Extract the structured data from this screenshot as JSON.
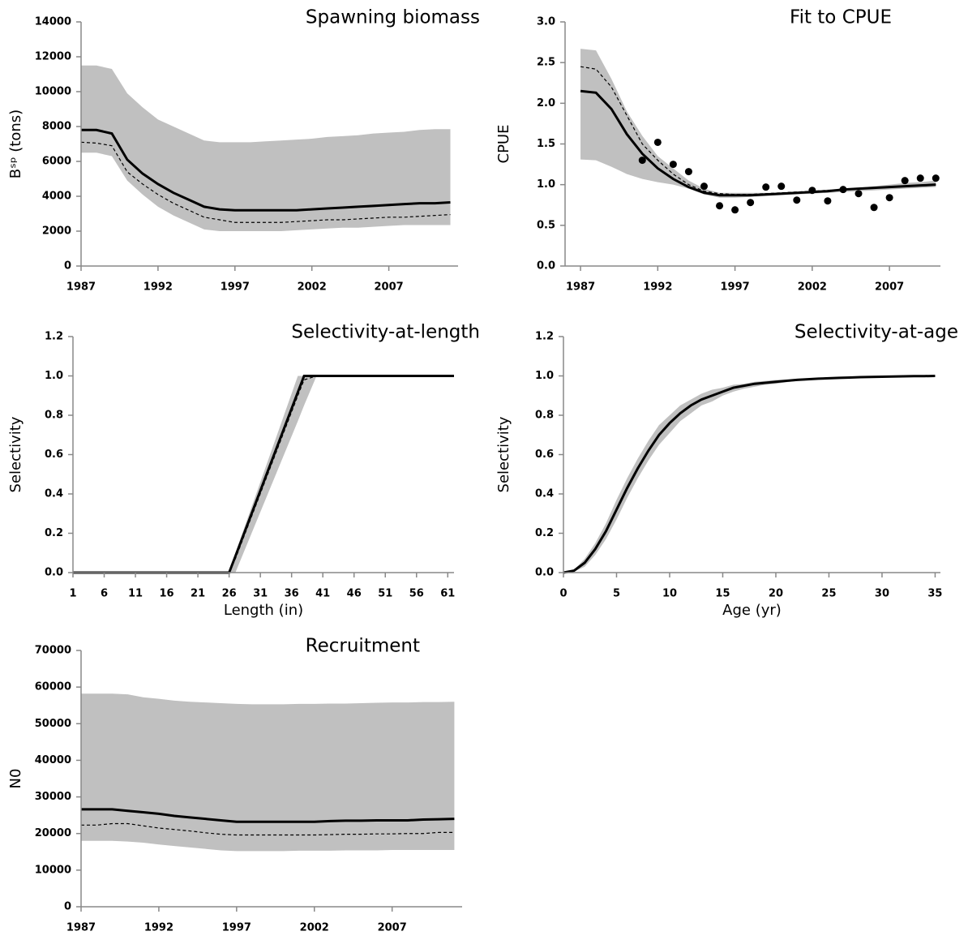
{
  "chart_data": [
    {
      "type": "band-line",
      "title": "Spawning biomass",
      "ylabel": "Bˢᵖ (tons)",
      "x": [
        1987,
        1988,
        1989,
        1990,
        1991,
        1992,
        1993,
        1994,
        1995,
        1996,
        1997,
        1998,
        1999,
        2000,
        2001,
        2002,
        2003,
        2004,
        2005,
        2006,
        2007,
        2008,
        2009,
        2010,
        2011
      ],
      "band": {
        "color": "#c0c0c0",
        "upper": [
          11500,
          11500,
          11300,
          9900,
          9100,
          8400,
          8000,
          7600,
          7200,
          7100,
          7100,
          7100,
          7150,
          7200,
          7250,
          7300,
          7400,
          7450,
          7500,
          7600,
          7650,
          7700,
          7800,
          7850,
          7850
        ],
        "lower": [
          6500,
          6500,
          6300,
          4900,
          4100,
          3400,
          2900,
          2500,
          2100,
          2000,
          2000,
          2000,
          2000,
          2000,
          2050,
          2100,
          2150,
          2200,
          2200,
          2250,
          2300,
          2350,
          2350,
          2350,
          2350
        ]
      },
      "series": [
        {
          "color": "#000000",
          "style": "solid",
          "values": [
            7800,
            7800,
            7600,
            6100,
            5300,
            4700,
            4200,
            3800,
            3400,
            3250,
            3200,
            3200,
            3200,
            3200,
            3200,
            3250,
            3300,
            3350,
            3400,
            3450,
            3500,
            3550,
            3600,
            3600,
            3650
          ]
        },
        {
          "color": "#000000",
          "style": "dashed",
          "values": [
            7100,
            7050,
            6900,
            5400,
            4700,
            4100,
            3600,
            3200,
            2800,
            2650,
            2500,
            2500,
            2500,
            2500,
            2550,
            2600,
            2650,
            2650,
            2700,
            2750,
            2800,
            2800,
            2850,
            2900,
            2950
          ]
        }
      ],
      "xlim": [
        1987,
        2011.5
      ],
      "xticks": [
        1987,
        1992,
        1997,
        2002,
        2007
      ],
      "ylim": [
        0,
        14000
      ],
      "yticks": [
        0,
        2000,
        4000,
        6000,
        8000,
        10000,
        12000,
        14000
      ]
    },
    {
      "type": "band-line",
      "title": "Fit to CPUE",
      "ylabel": "CPUE",
      "x": [
        1987,
        1988,
        1989,
        1990,
        1991,
        1992,
        1993,
        1994,
        1995,
        1996,
        1997,
        1998,
        1999,
        2000,
        2001,
        2002,
        2003,
        2004,
        2005,
        2006,
        2007,
        2008,
        2009,
        2010
      ],
      "band": {
        "color": "#c0c0c0",
        "upper": [
          2.67,
          2.65,
          2.3,
          1.9,
          1.6,
          1.35,
          1.2,
          1.05,
          0.95,
          0.9,
          0.9,
          0.9,
          0.9,
          0.9,
          0.91,
          0.92,
          0.94,
          0.95,
          0.96,
          0.98,
          1.0,
          1.02,
          1.03,
          1.05
        ],
        "lower": [
          1.31,
          1.3,
          1.22,
          1.13,
          1.07,
          1.03,
          1.0,
          0.95,
          0.88,
          0.84,
          0.84,
          0.85,
          0.86,
          0.87,
          0.88,
          0.89,
          0.9,
          0.91,
          0.92,
          0.93,
          0.94,
          0.95,
          0.96,
          0.97
        ]
      },
      "series": [
        {
          "color": "#000000",
          "style": "solid",
          "values": [
            2.15,
            2.13,
            1.93,
            1.62,
            1.38,
            1.2,
            1.07,
            0.97,
            0.9,
            0.87,
            0.87,
            0.87,
            0.88,
            0.89,
            0.9,
            0.91,
            0.92,
            0.94,
            0.95,
            0.96,
            0.97,
            0.98,
            0.99,
            1.0
          ]
        },
        {
          "color": "#000000",
          "style": "dashed",
          "values": [
            2.45,
            2.42,
            2.2,
            1.85,
            1.5,
            1.3,
            1.13,
            1.0,
            0.92,
            0.89,
            0.88,
            0.88,
            0.89,
            0.9,
            0.91,
            0.92,
            0.93,
            0.94,
            0.95,
            0.96,
            0.97,
            0.98,
            0.99,
            1.0
          ]
        }
      ],
      "points": {
        "color": "#000000",
        "x": [
          1991,
          1992,
          1993,
          1994,
          1995,
          1996,
          1997,
          1998,
          1999,
          2000,
          2001,
          2002,
          2003,
          2004,
          2005,
          2006,
          2007,
          2008,
          2009,
          2010
        ],
        "values": [
          1.3,
          1.52,
          1.25,
          1.16,
          0.98,
          0.74,
          0.69,
          0.78,
          0.97,
          0.98,
          0.81,
          0.93,
          0.8,
          0.94,
          0.89,
          0.72,
          0.84,
          1.05,
          1.08,
          1.08
        ]
      },
      "xlim": [
        1986,
        2010.3
      ],
      "xticks": [
        1987,
        1992,
        1997,
        2002,
        2007
      ],
      "ylim": [
        0,
        3
      ],
      "yticks": [
        {
          "value": 0,
          "label": "0.0"
        },
        0.5,
        {
          "value": 1,
          "label": "1.0"
        },
        1.5,
        {
          "value": 2,
          "label": "2.0"
        },
        2.5,
        {
          "value": 3,
          "label": "3.0"
        }
      ]
    },
    {
      "type": "band-line",
      "title": "Selectivity-at-length",
      "ylabel": "Selectivity",
      "xlabel": "Length (in)",
      "x": [
        1,
        26,
        27,
        37,
        38,
        40,
        62
      ],
      "band": {
        "color": "#c0c0c0",
        "upper": [
          0,
          0,
          0.1,
          1,
          1,
          1,
          1
        ],
        "lower": [
          0,
          0,
          0,
          0.77,
          0.85,
          1,
          1
        ]
      },
      "series": [
        {
          "color": "#000000",
          "style": "solid",
          "values": [
            0,
            0,
            0.083,
            0.917,
            1,
            1,
            1
          ]
        },
        {
          "color": "#000000",
          "style": "dashed",
          "values": [
            0,
            0,
            0.07,
            0.9,
            0.98,
            1,
            1
          ]
        }
      ],
      "xlim": [
        1,
        62
      ],
      "xticks": [
        1,
        6,
        11,
        16,
        21,
        26,
        31,
        36,
        41,
        46,
        51,
        56,
        61
      ],
      "ylim": [
        0,
        1.2
      ],
      "yticks": [
        {
          "value": 0,
          "label": "0.0"
        },
        0.2,
        0.4,
        0.6,
        0.8,
        {
          "value": 1,
          "label": "1.0"
        },
        1.2
      ]
    },
    {
      "type": "band-line",
      "title": "Selectivity-at-age",
      "ylabel": "Selectivity",
      "xlabel": "Age (yr)",
      "x": [
        0,
        1,
        2,
        3,
        4,
        5,
        6,
        7,
        8,
        9,
        10,
        11,
        12,
        13,
        14,
        15,
        16,
        17,
        18,
        19,
        20,
        21,
        22,
        23,
        24,
        25,
        26,
        27,
        28,
        29,
        30,
        31,
        32,
        33,
        34,
        35
      ],
      "band": {
        "color": "#c0c0c0",
        "upper": [
          0,
          0.015,
          0.07,
          0.15,
          0.25,
          0.37,
          0.48,
          0.58,
          0.67,
          0.75,
          0.8,
          0.85,
          0.88,
          0.91,
          0.93,
          0.94,
          0.955,
          0.96,
          0.97,
          0.975,
          0.98,
          0.983,
          0.986,
          0.988,
          0.99,
          0.992,
          0.993,
          0.995,
          0.996,
          0.997,
          0.998,
          0.998,
          0.999,
          0.999,
          1,
          1
        ],
        "lower": [
          0,
          0.005,
          0.03,
          0.09,
          0.17,
          0.27,
          0.38,
          0.48,
          0.57,
          0.65,
          0.71,
          0.77,
          0.81,
          0.85,
          0.87,
          0.9,
          0.92,
          0.935,
          0.945,
          0.955,
          0.96,
          0.968,
          0.974,
          0.978,
          0.982,
          0.985,
          0.988,
          0.99,
          0.992,
          0.994,
          0.995,
          0.996,
          0.997,
          0.998,
          0.999,
          1
        ]
      },
      "series": [
        {
          "color": "#000000",
          "style": "solid",
          "values": [
            0,
            0.01,
            0.05,
            0.12,
            0.21,
            0.32,
            0.43,
            0.53,
            0.62,
            0.7,
            0.76,
            0.81,
            0.85,
            0.88,
            0.9,
            0.92,
            0.94,
            0.95,
            0.96,
            0.965,
            0.97,
            0.975,
            0.98,
            0.983,
            0.986,
            0.988,
            0.99,
            0.992,
            0.994,
            0.995,
            0.996,
            0.997,
            0.998,
            0.999,
            0.999,
            1
          ]
        }
      ],
      "xlim": [
        0,
        35.5
      ],
      "xticks": [
        0,
        5,
        10,
        15,
        20,
        25,
        30,
        35
      ],
      "ylim": [
        0,
        1.2
      ],
      "yticks": [
        {
          "value": 0,
          "label": "0.0"
        },
        0.2,
        0.4,
        0.6,
        0.8,
        {
          "value": 1,
          "label": "1.0"
        },
        1.2
      ]
    },
    {
      "type": "band-line",
      "title": "Recruitment",
      "ylabel": "N0",
      "x": [
        1987,
        1988,
        1989,
        1990,
        1991,
        1992,
        1993,
        1994,
        1995,
        1996,
        1997,
        1998,
        1999,
        2000,
        2001,
        2002,
        2003,
        2004,
        2005,
        2006,
        2007,
        2008,
        2009,
        2010,
        2011
      ],
      "band": {
        "color": "#c0c0c0",
        "upper": [
          58200,
          58200,
          58200,
          58000,
          57200,
          56800,
          56300,
          56000,
          55800,
          55600,
          55400,
          55300,
          55300,
          55300,
          55400,
          55400,
          55500,
          55500,
          55600,
          55700,
          55800,
          55800,
          55900,
          55900,
          56000
        ],
        "lower": [
          18000,
          18000,
          18000,
          17800,
          17500,
          17000,
          16600,
          16200,
          15800,
          15400,
          15200,
          15200,
          15200,
          15200,
          15300,
          15300,
          15300,
          15400,
          15400,
          15400,
          15500,
          15500,
          15500,
          15500,
          15500
        ]
      },
      "series": [
        {
          "color": "#000000",
          "style": "solid",
          "values": [
            26600,
            26600,
            26600,
            26200,
            25800,
            25400,
            24800,
            24400,
            24000,
            23600,
            23200,
            23200,
            23200,
            23200,
            23200,
            23200,
            23400,
            23500,
            23500,
            23600,
            23600,
            23600,
            23800,
            23900,
            24000
          ]
        },
        {
          "color": "#000000",
          "style": "dashed",
          "values": [
            22300,
            22300,
            22700,
            22700,
            22100,
            21500,
            21100,
            20700,
            20200,
            19800,
            19600,
            19600,
            19600,
            19600,
            19600,
            19600,
            19700,
            19800,
            19800,
            19900,
            19900,
            20000,
            20000,
            20300,
            20300
          ]
        }
      ],
      "xlim": [
        1987,
        2011.5
      ],
      "xticks": [
        1987,
        1992,
        1997,
        2002,
        2007
      ],
      "ylim": [
        0,
        70000
      ],
      "yticks": [
        0,
        10000,
        20000,
        30000,
        40000,
        50000,
        60000,
        70000
      ]
    }
  ]
}
